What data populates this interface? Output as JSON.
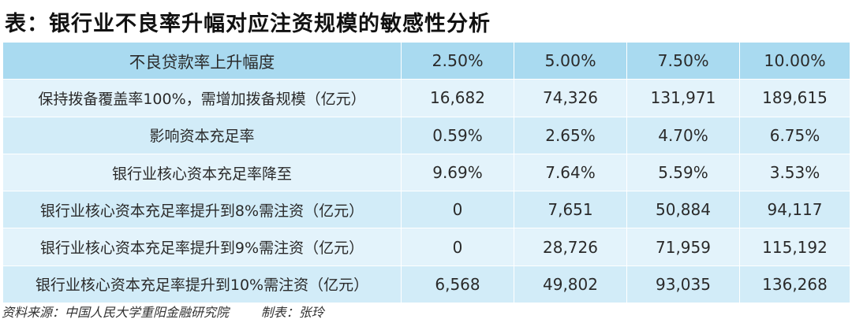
{
  "title": "表：银行业不良率升幅对应注资规模的敏感性分析",
  "table": {
    "header": [
      "不良贷款率上升幅度",
      "2.50%",
      "5.00%",
      "7.50%",
      "10.00%"
    ],
    "rows": [
      [
        "保持拨备覆盖率100%，需增加拨备规模（亿元）",
        "16,682",
        "74,326",
        "131,971",
        "189,615"
      ],
      [
        "影响资本充足率",
        "0.59%",
        "2.65%",
        "4.70%",
        "6.75%"
      ],
      [
        "银行业核心资本充足率降至",
        "9.69%",
        "7.64%",
        "5.59%",
        "3.53%"
      ],
      [
        "银行业核心资本充足率提升到8%需注资（亿元）",
        "0",
        "7,651",
        "50,884",
        "94,117"
      ],
      [
        "银行业核心资本充足率提升到9%需注资（亿元）",
        "0",
        "28,726",
        "71,959",
        "115,192"
      ],
      [
        "银行业核心资本充足率提升到10%需注资（亿元）",
        "6,568",
        "49,802",
        "93,035",
        "136,268"
      ]
    ]
  },
  "footer": {
    "source": "资料来源：中国人民大学重阳金融研究院",
    "maker": "制表：张玲"
  },
  "colors": {
    "header_bg": "#a9daf0",
    "row_bg_light": "#e3f3fb",
    "row_bg_dark": "#d2ecf8"
  }
}
